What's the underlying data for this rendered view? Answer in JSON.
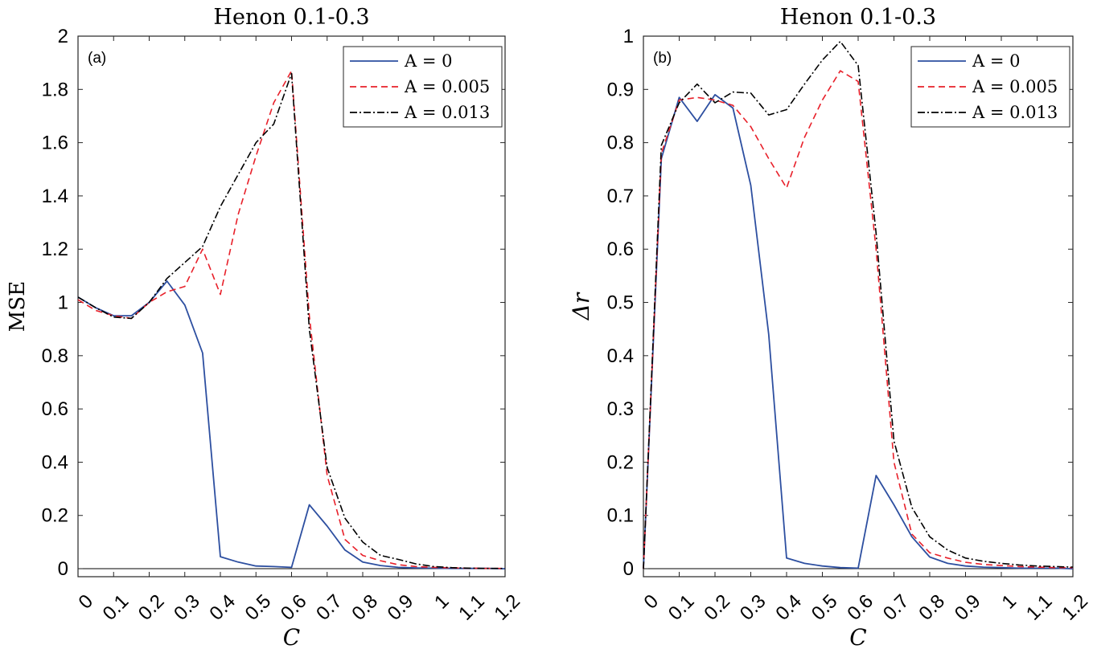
{
  "chart_data": [
    {
      "type": "line",
      "title": "Henon 0.1-0.3",
      "panel_label": "(a)",
      "xlabel": "C",
      "ylabel": "MSE",
      "xlim": [
        0,
        1.2
      ],
      "ylim": [
        -0.03,
        2
      ],
      "xticks": [
        0,
        0.1,
        0.2,
        0.3,
        0.4,
        0.5,
        0.6,
        0.7,
        0.8,
        0.9,
        1,
        1.1,
        1.2
      ],
      "xtick_labels": [
        "0",
        "0.1",
        "0.2",
        "0.3",
        "0.4",
        "0.5",
        "0.6",
        "0.7",
        "0.8",
        "0.9",
        "1",
        "1.1",
        "1.2"
      ],
      "yticks": [
        0,
        0.2,
        0.4,
        0.6,
        0.8,
        1,
        1.2,
        1.4,
        1.6,
        1.8,
        2
      ],
      "ytick_labels": [
        "0",
        "0.2",
        "0.4",
        "0.6",
        "0.8",
        "1",
        "1.2",
        "1.4",
        "1.6",
        "1.8",
        "2"
      ],
      "legend_position": "top-right",
      "grid": false,
      "x": [
        0,
        0.05,
        0.1,
        0.15,
        0.2,
        0.25,
        0.3,
        0.35,
        0.4,
        0.45,
        0.5,
        0.55,
        0.6,
        0.65,
        0.7,
        0.75,
        0.8,
        0.85,
        0.9,
        0.95,
        1.0,
        1.05,
        1.1,
        1.15,
        1.2
      ],
      "series": [
        {
          "name": "A = 0",
          "color": "#2d4fa0",
          "dash": "solid",
          "values": [
            1.02,
            0.98,
            0.95,
            0.95,
            1.0,
            1.08,
            0.99,
            0.81,
            0.045,
            0.025,
            0.01,
            0.008,
            0.005,
            0.24,
            0.16,
            0.07,
            0.025,
            0.012,
            0.005,
            0.003,
            0.002,
            0.001,
            0.001,
            0.001,
            0.0
          ]
        },
        {
          "name": "A = 0.005",
          "color": "#e8202a",
          "dash": "dashed",
          "values": [
            1.01,
            0.97,
            0.95,
            0.94,
            1.0,
            1.04,
            1.06,
            1.2,
            1.03,
            1.33,
            1.55,
            1.75,
            1.87,
            0.95,
            0.35,
            0.11,
            0.05,
            0.03,
            0.015,
            0.008,
            0.005,
            0.003,
            0.002,
            0.001,
            0.001
          ]
        },
        {
          "name": "A = 0.013",
          "color": "#000000",
          "dash": "dashdot",
          "values": [
            1.02,
            0.98,
            0.945,
            0.94,
            1.0,
            1.09,
            1.15,
            1.21,
            1.36,
            1.48,
            1.6,
            1.67,
            1.86,
            0.9,
            0.38,
            0.19,
            0.1,
            0.05,
            0.035,
            0.018,
            0.008,
            0.004,
            0.002,
            0.001,
            0.001
          ]
        }
      ]
    },
    {
      "type": "line",
      "title": "Henon 0.1-0.3",
      "panel_label": "(b)",
      "xlabel": "C",
      "ylabel": "Δr",
      "xlim": [
        0,
        1.2
      ],
      "ylim": [
        -0.015,
        1
      ],
      "xticks": [
        0,
        0.1,
        0.2,
        0.3,
        0.4,
        0.5,
        0.6,
        0.7,
        0.8,
        0.9,
        1,
        1.1,
        1.2
      ],
      "xtick_labels": [
        "0",
        "0.1",
        "0.2",
        "0.3",
        "0.4",
        "0.5",
        "0.6",
        "0.7",
        "0.8",
        "0.9",
        "1",
        "1.1",
        "1.2"
      ],
      "yticks": [
        0,
        0.1,
        0.2,
        0.3,
        0.4,
        0.5,
        0.6,
        0.7,
        0.8,
        0.9,
        1
      ],
      "ytick_labels": [
        "0",
        "0.1",
        "0.2",
        "0.3",
        "0.4",
        "0.5",
        "0.6",
        "0.7",
        "0.8",
        "0.9",
        "1"
      ],
      "legend_position": "top-right",
      "grid": false,
      "x": [
        0,
        0.05,
        0.1,
        0.15,
        0.2,
        0.25,
        0.3,
        0.35,
        0.4,
        0.45,
        0.5,
        0.55,
        0.6,
        0.65,
        0.7,
        0.75,
        0.8,
        0.85,
        0.9,
        0.95,
        1.0,
        1.05,
        1.1,
        1.15,
        1.2
      ],
      "series": [
        {
          "name": "A = 0",
          "color": "#2d4fa0",
          "dash": "solid",
          "values": [
            0.0,
            0.77,
            0.885,
            0.84,
            0.89,
            0.865,
            0.72,
            0.44,
            0.02,
            0.01,
            0.005,
            0.002,
            0.001,
            0.175,
            0.12,
            0.06,
            0.022,
            0.01,
            0.005,
            0.003,
            0.002,
            0.001,
            0.001,
            0.001,
            0.0
          ]
        },
        {
          "name": "A = 0.005",
          "color": "#e8202a",
          "dash": "dashed",
          "values": [
            0.0,
            0.78,
            0.88,
            0.885,
            0.88,
            0.87,
            0.83,
            0.77,
            0.715,
            0.81,
            0.88,
            0.935,
            0.915,
            0.6,
            0.2,
            0.065,
            0.03,
            0.02,
            0.012,
            0.008,
            0.006,
            0.004,
            0.003,
            0.002,
            0.002
          ]
        },
        {
          "name": "A = 0.013",
          "color": "#000000",
          "dash": "dashdot",
          "values": [
            0.0,
            0.795,
            0.875,
            0.91,
            0.875,
            0.895,
            0.893,
            0.852,
            0.862,
            0.91,
            0.955,
            0.99,
            0.945,
            0.63,
            0.24,
            0.115,
            0.06,
            0.035,
            0.02,
            0.014,
            0.01,
            0.007,
            0.005,
            0.004,
            0.003
          ]
        }
      ]
    }
  ]
}
